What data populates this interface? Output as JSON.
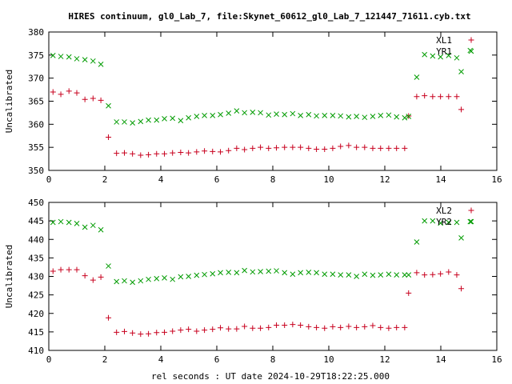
{
  "title": "HIRES continuum, gl0_Lab_7, file:Skynet_60612_gl0_Lab_7_121447_71611.cyb.txt",
  "xlabel": "rel seconds : UT date 2024-10-29T18:22:25.000",
  "colors": {
    "red": "#c8001e",
    "green": "#009b00"
  },
  "chart_data": [
    {
      "type": "scatter",
      "ylabel": "Uncalibrated",
      "xlim": [
        0,
        16
      ],
      "ylim": [
        350,
        380
      ],
      "x_ticks": [
        "0",
        "2",
        "4",
        "6",
        "8",
        "10",
        "12",
        "14",
        "16"
      ],
      "y_ticks": [
        "350",
        "355",
        "360",
        "365",
        "370",
        "375",
        "380"
      ],
      "legend_position": "top-right",
      "grid": false,
      "series": [
        {
          "name": "XL1",
          "marker": "+",
          "color": "red",
          "x": [
            0.15,
            0.43,
            0.72,
            1.0,
            1.29,
            1.58,
            1.86,
            2.13,
            2.42,
            2.7,
            2.99,
            3.28,
            3.56,
            3.85,
            4.13,
            4.42,
            4.71,
            4.99,
            5.28,
            5.56,
            5.85,
            6.13,
            6.42,
            6.71,
            6.99,
            7.28,
            7.56,
            7.85,
            8.13,
            8.42,
            8.71,
            8.99,
            9.28,
            9.56,
            9.85,
            10.14,
            10.42,
            10.71,
            10.99,
            11.28,
            11.57,
            11.85,
            12.14,
            12.42,
            12.71,
            12.85,
            13.14,
            13.42,
            13.71,
            13.99,
            14.28,
            14.57,
            14.73
          ],
          "y": [
            367,
            366.5,
            367.2,
            366.8,
            365.4,
            365.6,
            365.2,
            357.2,
            353.7,
            353.8,
            353.6,
            353.3,
            353.4,
            353.6,
            353.6,
            353.8,
            353.9,
            353.8,
            354,
            354.2,
            354.1,
            354,
            354.3,
            354.8,
            354.5,
            354.8,
            355,
            354.8,
            354.9,
            355,
            355,
            355,
            354.8,
            354.6,
            354.6,
            354.8,
            355.2,
            355.4,
            355,
            355,
            354.8,
            354.8,
            354.8,
            354.8,
            354.8,
            361.8,
            366,
            366.2,
            366,
            366,
            366,
            366,
            363.2
          ]
        },
        {
          "name": "YR1",
          "marker": "x",
          "color": "green",
          "x": [
            0.15,
            0.43,
            0.72,
            1.0,
            1.29,
            1.58,
            1.86,
            2.13,
            2.42,
            2.7,
            2.99,
            3.28,
            3.56,
            3.85,
            4.13,
            4.42,
            4.71,
            4.99,
            5.28,
            5.56,
            5.85,
            6.13,
            6.42,
            6.71,
            6.99,
            7.28,
            7.56,
            7.85,
            8.13,
            8.42,
            8.71,
            8.99,
            9.28,
            9.56,
            9.85,
            10.14,
            10.42,
            10.71,
            10.99,
            11.28,
            11.57,
            11.85,
            12.14,
            12.42,
            12.71,
            12.85,
            13.14,
            13.42,
            13.71,
            13.99,
            14.28,
            14.57,
            14.73,
            15.05
          ],
          "y": [
            374.9,
            374.7,
            374.6,
            374.2,
            374,
            373.7,
            373,
            364,
            360.5,
            360.5,
            360.3,
            360.6,
            360.9,
            360.9,
            361.2,
            361.3,
            360.8,
            361.4,
            361.7,
            361.9,
            361.9,
            362.1,
            362.4,
            362.9,
            362.5,
            362.6,
            362.5,
            362,
            362.2,
            362.1,
            362.3,
            361.9,
            362.1,
            361.8,
            361.9,
            361.9,
            361.8,
            361.6,
            361.7,
            361.5,
            361.7,
            361.9,
            362,
            361.6,
            361.4,
            361.7,
            370.2,
            375.1,
            374.8,
            374.6,
            374.9,
            374.4,
            371.4,
            376
          ]
        }
      ]
    },
    {
      "type": "scatter",
      "ylabel": "Uncalibrated",
      "xlim": [
        0,
        16
      ],
      "ylim": [
        410,
        450
      ],
      "x_ticks": [
        "0",
        "2",
        "4",
        "6",
        "8",
        "10",
        "12",
        "14",
        "16"
      ],
      "y_ticks": [
        "410",
        "415",
        "420",
        "425",
        "430",
        "435",
        "440",
        "445",
        "450"
      ],
      "legend_position": "top-right",
      "grid": false,
      "series": [
        {
          "name": "XL2",
          "marker": "+",
          "color": "red",
          "x": [
            0.15,
            0.43,
            0.72,
            1.0,
            1.29,
            1.58,
            1.86,
            2.13,
            2.42,
            2.7,
            2.99,
            3.28,
            3.56,
            3.85,
            4.13,
            4.42,
            4.71,
            4.99,
            5.28,
            5.56,
            5.85,
            6.13,
            6.42,
            6.71,
            6.99,
            7.28,
            7.56,
            7.85,
            8.13,
            8.42,
            8.71,
            8.99,
            9.28,
            9.56,
            9.85,
            10.14,
            10.42,
            10.71,
            10.99,
            11.28,
            11.57,
            11.85,
            12.14,
            12.42,
            12.71,
            12.85,
            13.14,
            13.42,
            13.71,
            13.99,
            14.28,
            14.57,
            14.73
          ],
          "y": [
            431.4,
            431.8,
            431.8,
            431.8,
            430.2,
            429,
            429.8,
            418.8,
            414.9,
            415.1,
            414.7,
            414.4,
            414.5,
            414.8,
            414.9,
            415.2,
            415.5,
            415.7,
            415.2,
            415.5,
            415.7,
            416.1,
            415.8,
            415.8,
            416.5,
            416,
            416,
            416.2,
            416.8,
            416.8,
            417,
            416.8,
            416.4,
            416.2,
            416,
            416.4,
            416.2,
            416.5,
            416.2,
            416.4,
            416.7,
            416.2,
            416,
            416.2,
            416.2,
            425.5,
            431,
            430.4,
            430.5,
            430.7,
            431.2,
            430.4,
            426.7
          ]
        },
        {
          "name": "YR2",
          "marker": "x",
          "color": "green",
          "x": [
            0.15,
            0.43,
            0.72,
            1.0,
            1.29,
            1.58,
            1.86,
            2.13,
            2.42,
            2.7,
            2.99,
            3.28,
            3.56,
            3.85,
            4.13,
            4.42,
            4.71,
            4.99,
            5.28,
            5.56,
            5.85,
            6.13,
            6.42,
            6.71,
            6.99,
            7.28,
            7.56,
            7.85,
            8.13,
            8.42,
            8.71,
            8.99,
            9.28,
            9.56,
            9.85,
            10.14,
            10.42,
            10.71,
            10.99,
            11.28,
            11.57,
            11.85,
            12.14,
            12.42,
            12.71,
            12.85,
            13.14,
            13.42,
            13.71,
            13.99,
            14.28,
            14.57,
            14.73,
            15.05
          ],
          "y": [
            444.6,
            444.8,
            444.6,
            444.3,
            443.3,
            443.8,
            442.6,
            432.8,
            428.6,
            428.8,
            428.4,
            428.8,
            429.2,
            429.4,
            429.6,
            429.2,
            429.9,
            430,
            430.3,
            430.5,
            430.7,
            431,
            431.1,
            431,
            431.6,
            431.2,
            431.3,
            431.4,
            431.5,
            431,
            430.6,
            431,
            431.1,
            431,
            430.6,
            430.6,
            430.4,
            430.4,
            430,
            430.6,
            430.3,
            430.4,
            430.6,
            430.4,
            430.4,
            430.4,
            439.3,
            445,
            445,
            444.4,
            444.6,
            444.6,
            440.4,
            444.8
          ]
        }
      ]
    }
  ]
}
